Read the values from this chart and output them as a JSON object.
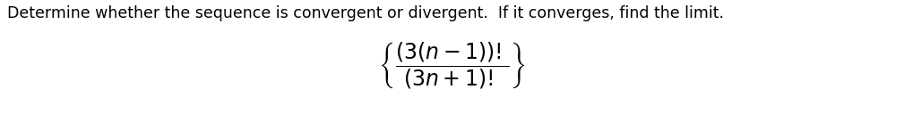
{
  "instruction_text": "Determine whether the sequence is convergent or divergent.  If it converges, find the limit.",
  "formula": "$\\left\\{\\dfrac{(3(n-1))!}{(3n+1)!}\\right\\}$",
  "text_color": "#000000",
  "background_color": "#ffffff",
  "instruction_fontsize": 12.5,
  "formula_fontsize": 17,
  "fig_width": 10.09,
  "fig_height": 1.28,
  "dpi": 100
}
